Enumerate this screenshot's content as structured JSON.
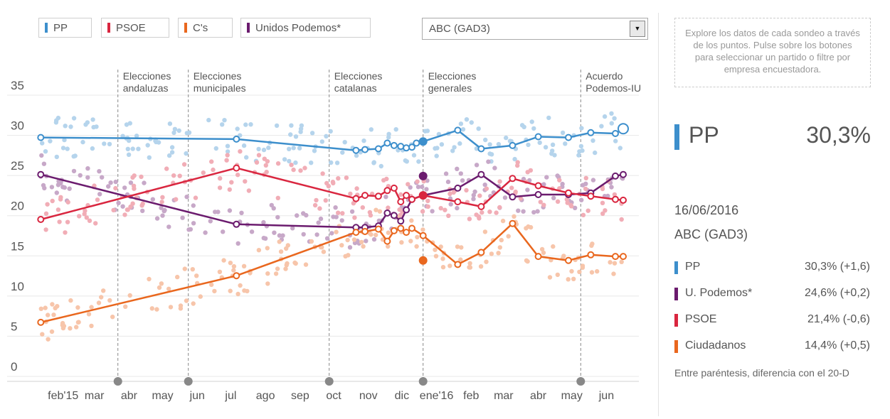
{
  "buttons": [
    {
      "label": "PP",
      "color": "#3d8fcc",
      "x": 0
    },
    {
      "label": "PSOE",
      "color": "#d9263f"
    },
    {
      "label": "C's",
      "color": "#e9671e"
    },
    {
      "label": "Unidos Podemos*",
      "color": "#6b1b6e"
    }
  ],
  "dropdown": {
    "selected": "ABC (GAD3)",
    "icon": "chevron-down-icon"
  },
  "hint": "Explore los datos de cada sondeo a través de los puntos. Pulse sobre los botones para seleccionar un partido o filtre por empresa encuestadora.",
  "selected": {
    "party": "PP",
    "value": "30,3%",
    "color": "#3d8fcc"
  },
  "date": "16/06/2016",
  "pollster": "ABC (GAD3)",
  "legend": [
    {
      "name": "PP",
      "value": "30,3% (+1,6)",
      "color": "#3d8fcc"
    },
    {
      "name": "U. Podemos*",
      "value": "24,6% (+0,2)",
      "color": "#6b1b6e"
    },
    {
      "name": "PSOE",
      "value": "21,4% (-0,6)",
      "color": "#d9263f"
    },
    {
      "name": "Ciudadanos",
      "value": "14,4% (+0,5)",
      "color": "#e9671e"
    }
  ],
  "footnote": "Entre paréntesis, diferencia con el 20-D",
  "chart_data": {
    "type": "line",
    "ylim": [
      0,
      35
    ],
    "yticks": [
      0,
      5,
      10,
      15,
      20,
      25,
      30,
      35
    ],
    "xlim": [
      "2015-01-01",
      "2016-06-30"
    ],
    "xticks": [
      {
        "label": "feb'15",
        "date": "2015-02-01"
      },
      {
        "label": "mar",
        "date": "2015-03-01"
      },
      {
        "label": "abr",
        "date": "2015-04-01"
      },
      {
        "label": "may",
        "date": "2015-05-01"
      },
      {
        "label": "jun",
        "date": "2015-06-01"
      },
      {
        "label": "jul",
        "date": "2015-07-01"
      },
      {
        "label": "ago",
        "date": "2015-08-01"
      },
      {
        "label": "sep",
        "date": "2015-09-01"
      },
      {
        "label": "oct",
        "date": "2015-10-01"
      },
      {
        "label": "nov",
        "date": "2015-11-01"
      },
      {
        "label": "dic",
        "date": "2015-12-01"
      },
      {
        "label": "ene'16",
        "date": "2016-01-01"
      },
      {
        "label": "feb",
        "date": "2016-02-01"
      },
      {
        "label": "mar",
        "date": "2016-03-01"
      },
      {
        "label": "abr",
        "date": "2016-04-01"
      },
      {
        "label": "may",
        "date": "2016-05-01"
      },
      {
        "label": "jun",
        "date": "2016-06-01"
      }
    ],
    "events": [
      {
        "date": "2015-03-22",
        "lines": [
          "Elecciones",
          "andaluzas"
        ]
      },
      {
        "date": "2015-05-24",
        "lines": [
          "Elecciones",
          "municipales"
        ]
      },
      {
        "date": "2015-09-27",
        "lines": [
          "Elecciones",
          "catalanas"
        ]
      },
      {
        "date": "2015-12-20",
        "lines": [
          "Elecciones",
          "generales"
        ]
      },
      {
        "date": "2016-05-09",
        "lines": [
          "Acuerdo",
          "Podemos-IU"
        ]
      }
    ],
    "series": [
      {
        "name": "PP",
        "color": "#3d8fcc",
        "x": [
          "2015-01-12",
          "2015-07-06",
          "2015-10-21",
          "2015-10-29",
          "2015-11-10",
          "2015-11-18",
          "2015-11-24",
          "2015-11-30",
          "2015-12-05",
          "2015-12-10",
          "2015-12-14",
          "2015-12-20",
          "2016-01-20",
          "2016-02-10",
          "2016-03-09",
          "2016-04-01",
          "2016-04-28",
          "2016-05-18",
          "2016-06-09",
          "2016-06-16"
        ],
        "y": [
          29.2,
          29.0,
          27.6,
          27.7,
          27.8,
          28.5,
          28.2,
          28.1,
          27.9,
          28.0,
          28.5,
          28.7,
          30.1,
          27.8,
          28.2,
          29.3,
          29.2,
          29.8,
          29.7,
          30.3
        ]
      },
      {
        "name": "Unidos Podemos*",
        "color": "#6b1b6e",
        "x": [
          "2015-01-12",
          "2015-07-06",
          "2015-10-21",
          "2015-10-29",
          "2015-11-10",
          "2015-11-18",
          "2015-11-24",
          "2015-11-30",
          "2015-12-05",
          "2015-12-10",
          "2015-12-20",
          "2016-01-20",
          "2016-02-10",
          "2016-03-09",
          "2016-04-01",
          "2016-04-28",
          "2016-05-18",
          "2016-06-09",
          "2016-06-16"
        ],
        "y": [
          24.6,
          18.4,
          18.0,
          18.0,
          18.2,
          19.8,
          19.5,
          18.8,
          20.2,
          21.5,
          22.0,
          22.9,
          24.6,
          21.8,
          22.1,
          22.1,
          22.3,
          24.4,
          24.6
        ]
      },
      {
        "name": "PSOE",
        "color": "#d9263f",
        "x": [
          "2015-01-12",
          "2015-07-06",
          "2015-10-21",
          "2015-10-29",
          "2015-11-10",
          "2015-11-18",
          "2015-11-24",
          "2015-11-30",
          "2015-12-05",
          "2015-12-10",
          "2015-12-20",
          "2016-01-20",
          "2016-02-10",
          "2016-03-09",
          "2016-04-01",
          "2016-04-28",
          "2016-05-18",
          "2016-06-09",
          "2016-06-16"
        ],
        "y": [
          19.0,
          25.4,
          21.6,
          22.0,
          21.9,
          22.6,
          22.9,
          21.2,
          22.0,
          21.5,
          22.0,
          21.2,
          20.6,
          24.1,
          23.2,
          22.3,
          21.9,
          21.5,
          21.4
        ]
      },
      {
        "name": "C's",
        "color": "#e9671e",
        "x": [
          "2015-01-12",
          "2015-07-06",
          "2015-10-21",
          "2015-10-29",
          "2015-11-10",
          "2015-11-18",
          "2015-11-24",
          "2015-11-30",
          "2015-12-05",
          "2015-12-10",
          "2015-12-20",
          "2016-01-20",
          "2016-02-10",
          "2016-03-09",
          "2016-04-01",
          "2016-04-28",
          "2016-05-18",
          "2016-06-09",
          "2016-06-16"
        ],
        "y": [
          6.2,
          12.0,
          17.4,
          17.5,
          17.8,
          16.3,
          17.6,
          17.9,
          17.4,
          17.9,
          17.0,
          13.4,
          14.9,
          18.5,
          14.4,
          13.9,
          14.6,
          14.4,
          14.4
        ]
      }
    ],
    "election_result": [
      {
        "name": "PP",
        "value": 28.7,
        "color": "#3d8fcc"
      },
      {
        "name": "U. Podemos*",
        "value": 24.4,
        "color": "#6b1b6e"
      },
      {
        "name": "PSOE",
        "value": 22.0,
        "color": "#d9263f"
      },
      {
        "name": "C's",
        "value": 13.9,
        "color": "#e9671e"
      }
    ]
  }
}
